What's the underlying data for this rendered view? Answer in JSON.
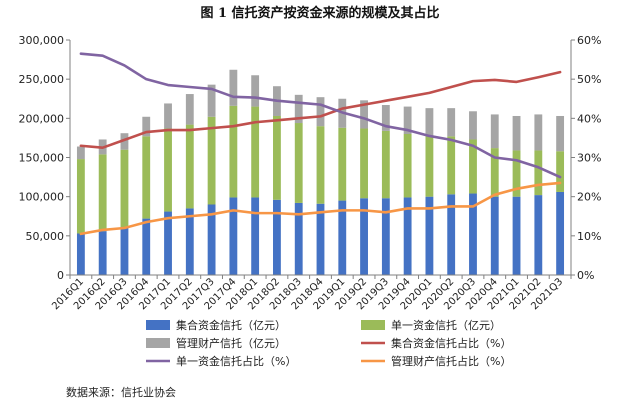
{
  "chart_data": {
    "type": "bar",
    "title": "图 1 信托资产按资金来源的规模及其占比",
    "source": "数据来源：信托业协会",
    "categories": [
      "2016Q1",
      "2016Q2",
      "2016Q3",
      "2016Q4",
      "2017Q1",
      "2017Q2",
      "2017Q3",
      "2017Q4",
      "2018Q1",
      "2018Q2",
      "2018Q3",
      "2018Q4",
      "2019Q1",
      "2019Q2",
      "2019Q3",
      "2019Q4",
      "2020Q1",
      "2020Q2",
      "2020Q3",
      "2020Q4",
      "2021Q1",
      "2021Q2",
      "2021Q3"
    ],
    "y_left": {
      "min": 0,
      "max": 300000,
      "ticks": [
        "0",
        "50,000",
        "100,000",
        "150,000",
        "200,000",
        "250,000",
        "300,000"
      ]
    },
    "y_right": {
      "min": 0,
      "max": 60,
      "ticks": [
        "0%",
        "10%",
        "20%",
        "30%",
        "40%",
        "50%",
        "60%"
      ]
    },
    "grid": false,
    "legend_position": "bottom",
    "bar_series": [
      {
        "name": "集合资金信托（亿元）",
        "color": "#4472c4",
        "values": [
          53000,
          56000,
          60000,
          72000,
          81000,
          85000,
          90000,
          99000,
          99000,
          96000,
          92000,
          91000,
          95000,
          98000,
          98000,
          99000,
          100000,
          103000,
          104000,
          100000,
          100000,
          102000,
          106000
        ]
      },
      {
        "name": "单一资金信托（亿元）",
        "color": "#9bbb59",
        "values": [
          95000,
          98000,
          100000,
          105000,
          106000,
          107000,
          112000,
          117000,
          116000,
          107000,
          102000,
          99000,
          93000,
          89000,
          86000,
          81000,
          78000,
          74000,
          69000,
          62000,
          59000,
          57000,
          52000
        ]
      },
      {
        "name": "管理财产信托（亿元）",
        "color": "#a5a5a5",
        "values": [
          16000,
          19000,
          21000,
          25000,
          32000,
          39000,
          41000,
          46000,
          40000,
          38000,
          36000,
          37000,
          37000,
          36000,
          33000,
          35000,
          35000,
          36000,
          36000,
          43000,
          44000,
          46000,
          45000
        ]
      }
    ],
    "line_series": [
      {
        "name": "集合资金信托占比（%）",
        "color": "#c0504d",
        "values": [
          33.0,
          32.5,
          34.5,
          36.5,
          37.0,
          37.0,
          37.5,
          38.0,
          39.0,
          39.5,
          40.0,
          40.5,
          42.5,
          43.5,
          44.5,
          45.5,
          46.5,
          48.0,
          49.5,
          49.8,
          49.3,
          50.5,
          51.8
        ]
      },
      {
        "name": "单一资金信托占比（%）",
        "color": "#8064a2",
        "values": [
          56.5,
          56.0,
          53.5,
          50.0,
          48.5,
          48.0,
          47.5,
          45.5,
          45.3,
          44.5,
          44.0,
          43.5,
          41.5,
          40.0,
          38.0,
          37.0,
          35.5,
          34.5,
          33.0,
          30.0,
          29.3,
          27.5,
          25.0
        ]
      },
      {
        "name": "管理财产信托占比（%）",
        "color": "#f79646",
        "values": [
          10.5,
          11.5,
          12.0,
          13.5,
          14.5,
          15.0,
          15.5,
          16.5,
          15.8,
          15.8,
          15.5,
          16.0,
          16.5,
          16.5,
          16.0,
          17.0,
          17.0,
          17.5,
          17.5,
          20.5,
          22.0,
          23.0,
          23.5
        ]
      }
    ]
  }
}
